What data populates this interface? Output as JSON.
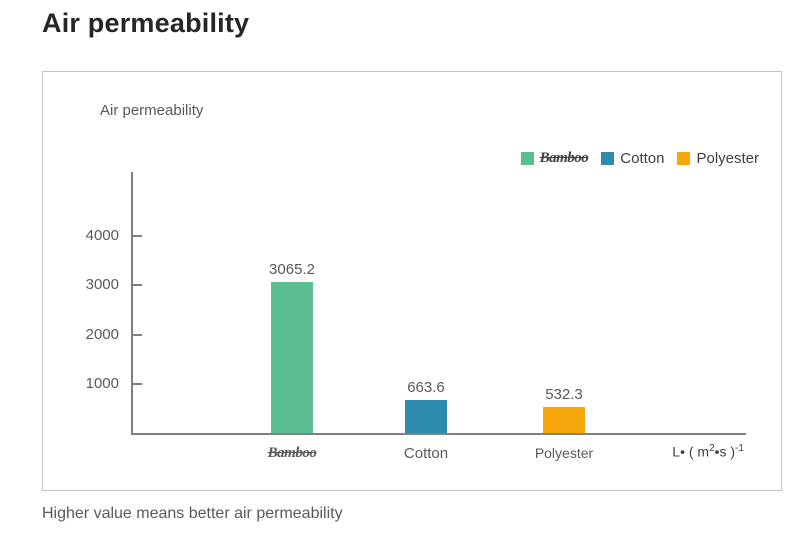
{
  "page": {
    "title": "Air permeability",
    "caption": "Higher value means better air permeability"
  },
  "chart_data": {
    "type": "bar",
    "title": "Air permeability",
    "categories": [
      "Bamboo",
      "Cotton",
      "Polyester"
    ],
    "values": [
      3065.2,
      663.6,
      532.3
    ],
    "value_labels": [
      "3065.2",
      "663.6",
      "532.3"
    ],
    "colors": [
      "#5bbd92",
      "#2e8bad",
      "#f5a70b"
    ],
    "yticks": [
      1000,
      2000,
      3000,
      4000
    ],
    "ylim": [
      0,
      5300
    ],
    "grid": false,
    "legend": [
      "Bamboo",
      "Cotton",
      "Polyester"
    ],
    "legend_position": "top-right",
    "unit_label": "L•(m²•s)⁻¹",
    "unit_parts": {
      "pre": "L• ( m",
      "sup_a": "2",
      "mid": "•s )",
      "sup_b": "-1"
    },
    "axis_color": "#808080"
  }
}
